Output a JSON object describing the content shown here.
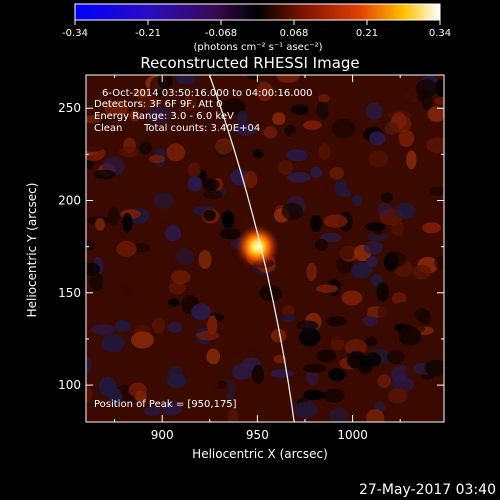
{
  "colorbar": {
    "ticks": [
      "-0.34",
      "-0.21",
      "-0.068",
      "0.068",
      "0.21",
      "0.34"
    ],
    "unit_label": "(photons cm⁻² s⁻¹ asec⁻²)",
    "range": [
      -0.34,
      0.34
    ]
  },
  "image": {
    "title": "Reconstructed RHESSI Image",
    "time_range": "6-Oct-2014 03:50:16.000 to 04:00:16.000",
    "detectors": "Detectors: 3F 6F 9F, Att 0",
    "energy_range": "Energy Range: 3.0 - 6.0 keV",
    "method": "Clean",
    "total_counts": "Total counts: 3.40E+04",
    "peak_position": "Position of Peak = [950,175]"
  },
  "footer": {
    "timestamp": "27-May-2017 03:40"
  },
  "chart_data": {
    "type": "heatmap",
    "title": "Reconstructed RHESSI Image",
    "xlabel": "Heliocentric X (arcsec)",
    "ylabel": "Heliocentric Y (arcsec)",
    "xlim": [
      860,
      1048
    ],
    "ylim": [
      80,
      268
    ],
    "x_ticks": [
      900,
      950,
      1000
    ],
    "y_ticks": [
      100,
      150,
      200,
      250
    ],
    "peak": {
      "x": 950,
      "y": 175
    },
    "colormap": "black-red-yellow-white (negative: blue-purple)",
    "limb_curve": {
      "color": "#ffffff"
    }
  }
}
